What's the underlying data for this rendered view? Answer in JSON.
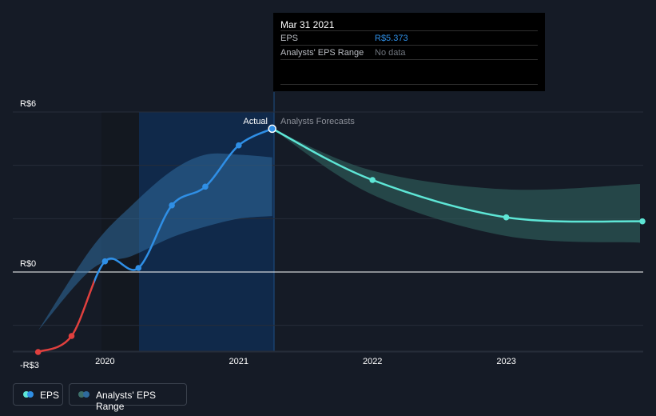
{
  "tooltip": {
    "date": "Mar 31 2021",
    "eps_label": "EPS",
    "eps_value": "R$5.373",
    "range_label": "Analysts' EPS Range",
    "range_value": "No data"
  },
  "chart_data": {
    "type": "line",
    "y_tick_labels": [
      "R$6",
      "R$0",
      "-R$3"
    ],
    "x_tick_labels": [
      "2020",
      "2021",
      "2022",
      "2023"
    ],
    "ylim": [
      -3,
      6
    ],
    "section_labels": {
      "actual": "Actual",
      "forecast": "Analysts Forecasts"
    },
    "series": [
      {
        "name": "EPS",
        "color_negative": "#e0403e",
        "color_positive": "#2f8fe6",
        "points": [
          {
            "x": 2019.5,
            "y": -3.0
          },
          {
            "x": 2019.75,
            "y": -2.4
          },
          {
            "x": 2020.0,
            "y": 0.4
          },
          {
            "x": 2020.25,
            "y": 0.15
          },
          {
            "x": 2020.5,
            "y": 2.5
          },
          {
            "x": 2020.75,
            "y": 3.2
          },
          {
            "x": 2021.0,
            "y": 4.75
          },
          {
            "x": 2021.25,
            "y": 5.373
          }
        ]
      },
      {
        "name": "Analysts Forecasts",
        "color": "#5ee6d6",
        "points": [
          {
            "x": 2021.25,
            "y": 5.373
          },
          {
            "x": 2022.0,
            "y": 3.45
          },
          {
            "x": 2023.0,
            "y": 2.05
          },
          {
            "x": 2024.0,
            "y": 1.9
          }
        ]
      }
    ],
    "past_range": {
      "x": [
        2019.5,
        2019.9,
        2020.2,
        2020.5,
        2020.75,
        2021.0,
        2021.25
      ],
      "high": [
        -2.2,
        0.9,
        2.5,
        3.8,
        4.4,
        4.4,
        4.3
      ],
      "low": [
        -2.2,
        0.1,
        0.6,
        1.3,
        1.7,
        2.0,
        2.1
      ]
    },
    "forecast_range": {
      "x": [
        2021.25,
        2022.0,
        2023.0,
        2024.0
      ],
      "high": [
        5.373,
        3.8,
        3.1,
        3.3
      ],
      "low": [
        5.373,
        2.9,
        1.35,
        1.1
      ]
    },
    "legend": [
      {
        "label": "EPS",
        "colors": [
          "#2f8fe6",
          "#5ee6d6"
        ]
      },
      {
        "label": "Analysts' EPS Range",
        "colors": [
          "#2f6b9e",
          "#3d6f6a"
        ]
      }
    ]
  }
}
